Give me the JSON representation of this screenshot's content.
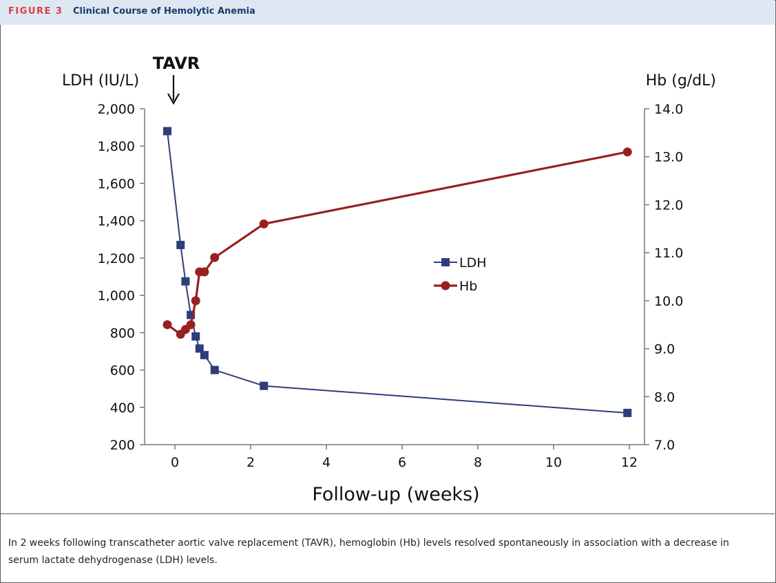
{
  "figure": {
    "label": "FIGURE 3",
    "title": "Clinical Course of Hemolytic Anemia",
    "caption": "In 2 weeks following transcatheter aortic valve replacement (TAVR), hemoglobin (Hb) levels resolved spontaneously in association with a decrease in serum lactate dehydrogenase (LDH) levels.",
    "colors": {
      "header_bg": "#dde8f3",
      "label": "#e03a3e",
      "title": "#1a3a6b"
    }
  },
  "chart_data": {
    "type": "line",
    "xlabel": "Follow-up (weeks)",
    "ylabel_left": "LDH (IU/L)",
    "ylabel_right": "Hb (g/dL)",
    "xlim": [
      -0.8,
      12.4
    ],
    "ylim_left": [
      200,
      2000
    ],
    "ylim_right": [
      7.0,
      14.0
    ],
    "x_ticks": [
      0,
      2,
      4,
      6,
      8,
      10,
      12
    ],
    "y_left_ticks": [
      "200",
      "400",
      "600",
      "800",
      "1,000",
      "1,200",
      "1,400",
      "1,600",
      "1,800",
      "2,000"
    ],
    "y_left_tick_values": [
      200,
      400,
      600,
      800,
      1000,
      1200,
      1400,
      1600,
      1800,
      2000
    ],
    "y_right_ticks": [
      "7.0",
      "8.0",
      "9.0",
      "10.0",
      "11.0",
      "12.0",
      "13.0",
      "14.0"
    ],
    "y_right_tick_values": [
      7,
      8,
      9,
      10,
      11,
      12,
      13,
      14
    ],
    "annotation": {
      "text": "TAVR",
      "x": 0
    },
    "legend_position": "center-right",
    "grid": false,
    "series": [
      {
        "name": "LDH",
        "axis": "left",
        "marker": "square",
        "color": "#2e3d7c",
        "x": [
          -0.2,
          0.15,
          0.28,
          0.42,
          0.55,
          0.65,
          0.78,
          1.05,
          2.35,
          11.95
        ],
        "y": [
          1880,
          1270,
          1075,
          895,
          780,
          715,
          680,
          600,
          515,
          370
        ]
      },
      {
        "name": "Hb",
        "axis": "right",
        "marker": "circle",
        "color": "#982020",
        "x": [
          -0.2,
          0.15,
          0.28,
          0.42,
          0.55,
          0.65,
          0.78,
          1.05,
          2.35,
          11.95
        ],
        "y": [
          9.5,
          9.3,
          9.4,
          9.5,
          10.0,
          10.6,
          10.6,
          10.9,
          11.6,
          13.1
        ]
      }
    ]
  }
}
